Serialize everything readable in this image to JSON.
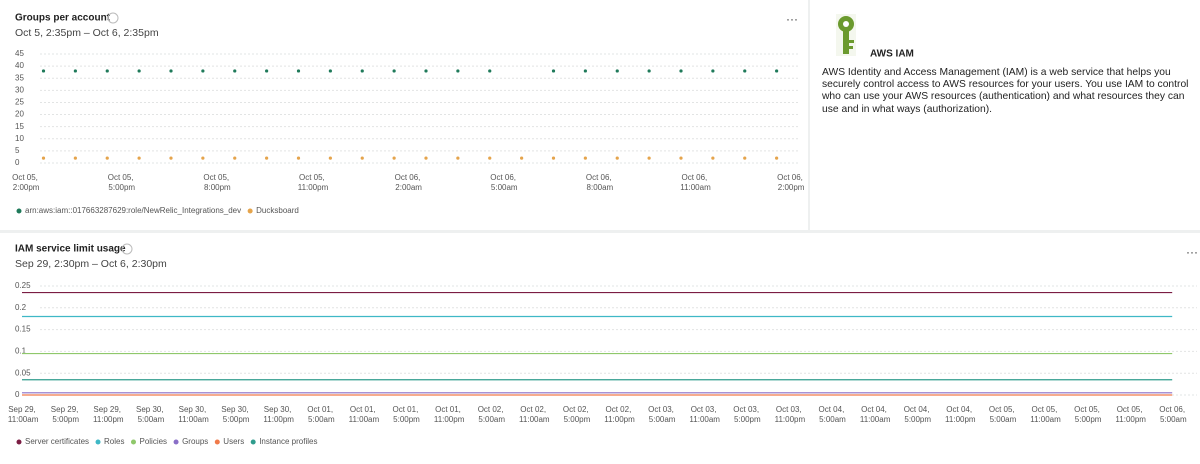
{
  "chart_data": [
    {
      "type": "scatter",
      "title": "Groups per account",
      "subtitle": "Oct 5, 2:35pm – Oct 6, 2:35pm",
      "categories": [
        "Oct 05, 2:00pm",
        null,
        null,
        "Oct 05, 5:00pm",
        null,
        null,
        "Oct 05, 8:00pm",
        null,
        null,
        "Oct 05, 11:00pm",
        null,
        null,
        "Oct 06, 2:00am",
        null,
        null,
        "Oct 06, 5:00am",
        null,
        null,
        "Oct 06, 8:00am",
        null,
        null,
        "Oct 06, 11:00am",
        null,
        null,
        "Oct 06, 2:00pm"
      ],
      "series": [
        {
          "name": "arn:aws:iam::017663287629:role/NewRelic_Integrations_dev",
          "color": "#1f7a5a",
          "values": [
            38,
            38,
            38,
            38,
            38,
            38,
            38,
            38,
            38,
            38,
            38,
            38,
            38,
            38,
            38,
            null,
            38,
            38,
            38,
            38,
            38,
            38,
            38,
            38,
            null
          ]
        },
        {
          "name": "Ducksboard",
          "color": "#e5a44c",
          "values": [
            2,
            2,
            2,
            2,
            2,
            2,
            2,
            2,
            2,
            2,
            2,
            2,
            2,
            2,
            2,
            2,
            2,
            2,
            2,
            2,
            2,
            2,
            2,
            2,
            null
          ]
        }
      ],
      "ylim": [
        0,
        45
      ],
      "yticks": [
        0,
        5,
        10,
        15,
        20,
        25,
        30,
        35,
        40,
        45
      ],
      "grid": true,
      "legend": "bottom-left"
    },
    {
      "type": "line",
      "title": "IAM service limit usage",
      "subtitle": "Sep 29, 2:30pm – Oct 6, 2:30pm",
      "categories": [
        "Sep 29, 11:00am",
        "Sep 29, 5:00pm",
        "Sep 29, 11:00pm",
        "Sep 30, 5:00am",
        "Sep 30, 11:00am",
        "Sep 30, 5:00pm",
        "Sep 30, 11:00pm",
        "Oct 01, 5:00am",
        "Oct 01, 11:00am",
        "Oct 01, 5:00pm",
        "Oct 01, 11:00pm",
        "Oct 02, 5:00am",
        "Oct 02, 11:00am",
        "Oct 02, 5:00pm",
        "Oct 02, 11:00pm",
        "Oct 03, 5:00am",
        "Oct 03, 11:00am",
        "Oct 03, 5:00pm",
        "Oct 03, 11:00pm",
        "Oct 04, 5:00am",
        "Oct 04, 11:00am",
        "Oct 04, 5:00pm",
        "Oct 04, 11:00pm",
        "Oct 05, 5:00am",
        "Oct 05, 11:00am",
        "Oct 05, 5:00pm",
        "Oct 05, 11:00pm",
        "Oct 06, 5:00am"
      ],
      "series": [
        {
          "name": "Server certificates",
          "color": "#7b1d43",
          "values": [
            0.235,
            0.235,
            0.235,
            0.235,
            0.235,
            0.235,
            0.235,
            0.235,
            0.235,
            0.235,
            0.235,
            0.235,
            0.235,
            0.235,
            0.235,
            0.235,
            0.235,
            0.235,
            0.235,
            0.235,
            0.235,
            0.235,
            0.235,
            0.235,
            0.235,
            0.235,
            0.235,
            0.235
          ]
        },
        {
          "name": "Roles",
          "color": "#3fb8c6",
          "values": [
            0.18,
            0.18,
            0.18,
            0.18,
            0.18,
            0.18,
            0.18,
            0.18,
            0.18,
            0.18,
            0.18,
            0.18,
            0.18,
            0.18,
            0.18,
            0.18,
            0.18,
            0.18,
            0.18,
            0.18,
            0.18,
            0.18,
            0.18,
            0.18,
            0.18,
            0.18,
            0.18,
            0.18
          ]
        },
        {
          "name": "Policies",
          "color": "#8fc86b",
          "values": [
            0.095,
            0.095,
            0.095,
            0.095,
            0.095,
            0.095,
            0.095,
            0.095,
            0.095,
            0.095,
            0.095,
            0.095,
            0.095,
            0.095,
            0.095,
            0.095,
            0.095,
            0.095,
            0.095,
            0.095,
            0.095,
            0.095,
            0.095,
            0.095,
            0.095,
            0.095,
            0.095,
            0.095
          ]
        },
        {
          "name": "Groups",
          "color": "#8a6fc7",
          "values": [
            0.005,
            0.005,
            0.005,
            0.005,
            0.005,
            0.005,
            0.005,
            0.005,
            0.005,
            0.005,
            0.005,
            0.005,
            0.005,
            0.005,
            0.005,
            0.005,
            0.005,
            0.005,
            0.005,
            0.005,
            0.005,
            0.005,
            0.005,
            0.005,
            0.005,
            0.005,
            0.005,
            0.005
          ]
        },
        {
          "name": "Users",
          "color": "#f07a4a",
          "values": [
            0,
            0,
            0,
            0,
            0,
            0,
            0,
            0,
            0,
            0,
            0,
            0,
            0,
            0,
            0,
            0,
            0,
            0,
            0,
            0,
            0,
            0,
            0,
            0,
            0,
            0,
            0,
            0
          ]
        },
        {
          "name": "Instance profiles",
          "color": "#2f9c8d",
          "values": [
            0.035,
            0.035,
            0.035,
            0.035,
            0.035,
            0.035,
            0.035,
            0.035,
            0.035,
            0.035,
            0.035,
            0.035,
            0.035,
            0.035,
            0.035,
            0.035,
            0.035,
            0.035,
            0.035,
            0.035,
            0.035,
            0.035,
            0.035,
            0.035,
            0.035,
            0.035,
            0.035,
            0.035
          ]
        }
      ],
      "ylim": [
        0,
        0.25
      ],
      "yticks": [
        0,
        0.05,
        0.1,
        0.15,
        0.2,
        0.25
      ],
      "grid": true,
      "legend": "bottom-left"
    }
  ],
  "info_panel": {
    "title": "AWS IAM",
    "description": "AWS Identity and Access Management (IAM) is a web service that helps you securely control access to AWS resources for your users. You use IAM to control who can use your AWS resources (authentication) and what resources they can use and in what ways (authorization)."
  }
}
